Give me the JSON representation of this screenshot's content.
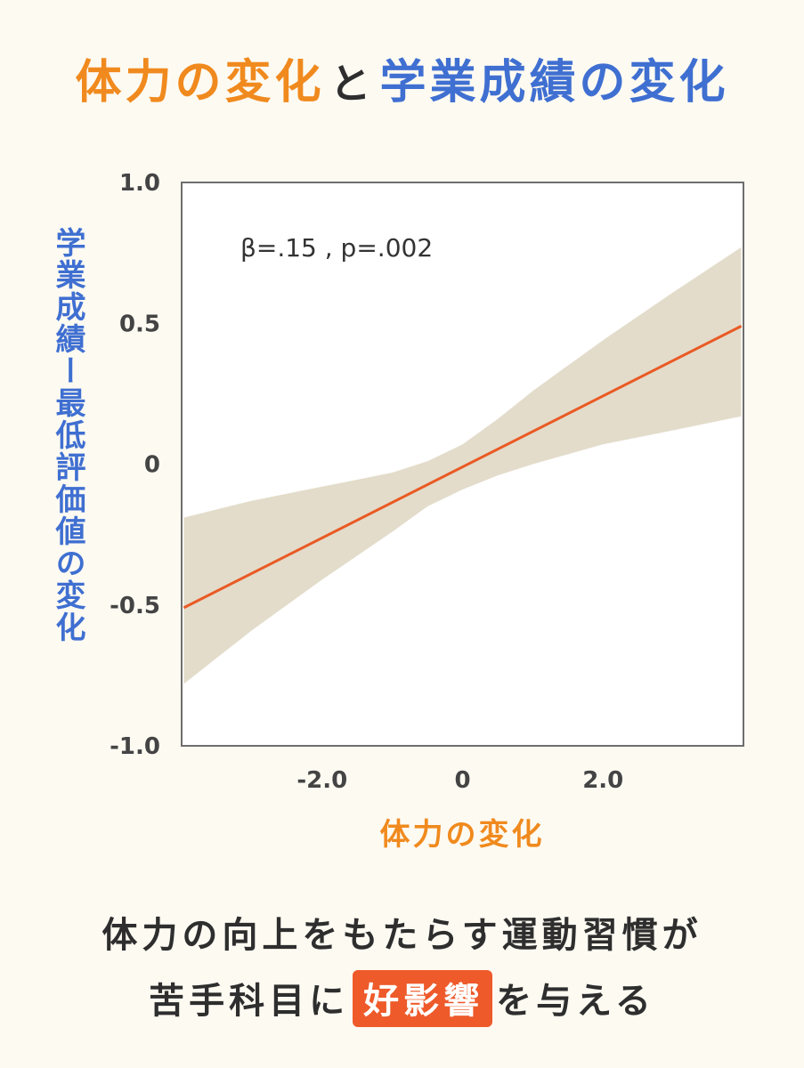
{
  "title": {
    "part_a": "体力の変化",
    "part_b": "と",
    "part_c": "学業成績の変化"
  },
  "caption": {
    "line1": "体力の向上をもたらす運動習慣が",
    "line2_before": "苦手科目に",
    "line2_highlight": "好影響",
    "line2_after": "を与える"
  },
  "colors": {
    "background": "#fdfaf2",
    "title_orange": "#f08a1e",
    "title_blue": "#3f6fd1",
    "regression_line": "#ea5a24",
    "confidence_band": "#e3dccb",
    "highlight_bg": "#ee5a2a"
  },
  "chart_data": {
    "type": "line",
    "title": "",
    "xlabel": "体力の変化",
    "ylabel": "学業成績ー最低評価値の変化",
    "xlim": [
      -4.0,
      4.0
    ],
    "ylim": [
      -1.0,
      1.0
    ],
    "x_ticks": [
      {
        "value": -2.0,
        "label": "-2.0"
      },
      {
        "value": 0,
        "label": "0"
      },
      {
        "value": 2.0,
        "label": "2.0"
      }
    ],
    "y_ticks": [
      {
        "value": 1.0,
        "label": "1.0"
      },
      {
        "value": 0.5,
        "label": "0.5"
      },
      {
        "value": 0,
        "label": "0"
      },
      {
        "value": -0.5,
        "label": "-0.5"
      },
      {
        "value": -1.0,
        "label": "-1.0"
      }
    ],
    "grid": false,
    "annotation": "β=.15 , p=.002",
    "series": [
      {
        "name": "",
        "x": [
          -3.97,
          3.97
        ],
        "y": [
          -0.51,
          0.49
        ]
      }
    ],
    "confidence_band": {
      "x": [
        -3.97,
        -3.0,
        -2.0,
        -1.0,
        -0.5,
        0,
        0.5,
        1.0,
        2.0,
        3.0,
        3.97
      ],
      "upper": [
        -0.19,
        -0.13,
        -0.08,
        -0.03,
        0.01,
        0.07,
        0.16,
        0.26,
        0.44,
        0.61,
        0.77
      ],
      "lower": [
        -0.78,
        -0.59,
        -0.41,
        -0.24,
        -0.15,
        -0.09,
        -0.04,
        0.0,
        0.07,
        0.12,
        0.17
      ]
    }
  }
}
